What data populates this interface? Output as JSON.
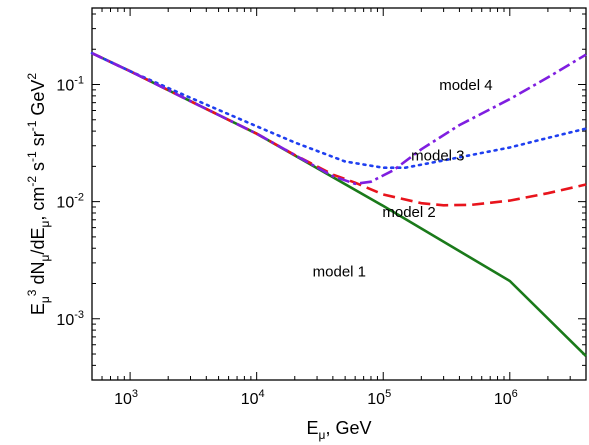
{
  "chart_data": {
    "type": "line",
    "x_scale": "log",
    "y_scale": "log",
    "xlim": [
      500,
      4000000
    ],
    "ylim": [
      0.0003,
      0.45
    ],
    "xticks": [
      {
        "value": 1000,
        "base": "10",
        "exp": "3"
      },
      {
        "value": 10000,
        "base": "10",
        "exp": "4"
      },
      {
        "value": 100000,
        "base": "10",
        "exp": "5"
      },
      {
        "value": 1000000,
        "base": "10",
        "exp": "6"
      }
    ],
    "yticks": [
      {
        "value": 0.001,
        "base": "10",
        "exp": "-3"
      },
      {
        "value": 0.01,
        "base": "10",
        "exp": "-2"
      },
      {
        "value": 0.1,
        "base": "10",
        "exp": "-1"
      }
    ],
    "xlabel": {
      "main": "E",
      "sub": "μ",
      "rest": ", GeV"
    },
    "ylabel_parts": [
      {
        "t": "E",
        "kind": "n"
      },
      {
        "t": "μ",
        "kind": "sub"
      },
      {
        "t": "3",
        "kind": "sup"
      },
      {
        "t": " dN",
        "kind": "n"
      },
      {
        "t": "μ",
        "kind": "sub"
      },
      {
        "t": "/dE",
        "kind": "n"
      },
      {
        "t": "μ",
        "kind": "sub"
      },
      {
        "t": ", cm",
        "kind": "n"
      },
      {
        "t": "-2",
        "kind": "sup"
      },
      {
        "t": " s",
        "kind": "n"
      },
      {
        "t": "-1",
        "kind": "sup"
      },
      {
        "t": " sr",
        "kind": "n"
      },
      {
        "t": "-1",
        "kind": "sup"
      },
      {
        "t": " GeV",
        "kind": "n"
      },
      {
        "t": "2",
        "kind": "sup"
      }
    ],
    "series": [
      {
        "name": "model 1",
        "color": "#1a7a1a",
        "dash": "solid",
        "x": [
          500,
          1000,
          3000,
          10000,
          100000,
          1000000,
          4000000
        ],
        "y": [
          0.185,
          0.13,
          0.072,
          0.038,
          0.0092,
          0.0021,
          0.00048
        ]
      },
      {
        "name": "model 2",
        "color": "#e8141c",
        "dash": "dashed",
        "x": [
          500,
          1000,
          3000,
          10000,
          20000,
          40000,
          60000,
          100000,
          200000,
          300000,
          500000,
          1000000,
          2000000,
          4000000
        ],
        "y": [
          0.185,
          0.13,
          0.072,
          0.038,
          0.025,
          0.017,
          0.0145,
          0.0115,
          0.0097,
          0.0093,
          0.0094,
          0.0102,
          0.0118,
          0.014
        ]
      },
      {
        "name": "model 3",
        "color": "#1f3ff0",
        "dash": "dotted",
        "x": [
          500,
          1000,
          3000,
          10000,
          20000,
          50000,
          100000,
          150000,
          300000,
          1000000,
          2000000,
          4000000
        ],
        "y": [
          0.185,
          0.13,
          0.077,
          0.044,
          0.032,
          0.022,
          0.0195,
          0.0195,
          0.0225,
          0.029,
          0.035,
          0.042
        ]
      },
      {
        "name": "model 4",
        "color": "#7f1ee0",
        "dash": "dashdot",
        "x": [
          500,
          1000,
          3000,
          10000,
          20000,
          40000,
          60000,
          80000,
          120000,
          200000,
          400000,
          1000000,
          2000000,
          4000000
        ],
        "y": [
          0.185,
          0.13,
          0.072,
          0.038,
          0.025,
          0.0165,
          0.0142,
          0.0148,
          0.0185,
          0.028,
          0.045,
          0.075,
          0.115,
          0.18
        ]
      }
    ],
    "annotations": [
      {
        "text": "model 4",
        "x": 450000,
        "y": 0.09
      },
      {
        "text": "model 3",
        "x": 270000,
        "y": 0.0225
      },
      {
        "text": "model 2",
        "x": 160000,
        "y": 0.0074
      },
      {
        "text": "model 1",
        "x": 45000,
        "y": 0.0023
      }
    ]
  }
}
